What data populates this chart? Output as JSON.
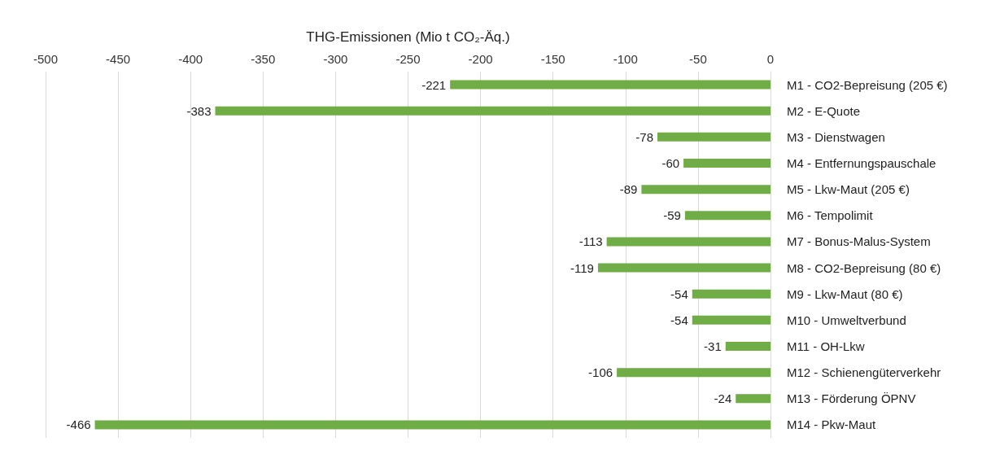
{
  "chart_data": {
    "type": "bar",
    "orientation": "horizontal",
    "xlabel": "THG-Emissionen (Mio t CO₂-Äq.)",
    "categories": [
      "M1 - CO2-Bepreisung (205 €)",
      "M2 - E-Quote",
      "M3 - Dienstwagen",
      "M4 - Entfernungspauschale",
      "M5 - Lkw-Maut (205 €)",
      "M6 - Tempolimit",
      "M7 - Bonus-Malus-System",
      "M8 - CO2-Bepreisung (80 €)",
      "M9 - Lkw-Maut (80 €)",
      "M10 - Umweltverbund",
      "M11 - OH-Lkw",
      "M12 - Schienengüterverkehr",
      "M13 - Förderung ÖPNV",
      "M14 - Pkw-Maut"
    ],
    "values": [
      -221,
      -383,
      -78,
      -60,
      -89,
      -59,
      -113,
      -119,
      -54,
      -54,
      -31,
      -106,
      -24,
      -466
    ],
    "color": "#70ad47",
    "xlim": [
      -500,
      0
    ],
    "xticks": [
      -500,
      -450,
      -400,
      -350,
      -300,
      -250,
      -200,
      -150,
      -100,
      -50,
      0
    ],
    "grid": "x",
    "data_labels": true
  }
}
